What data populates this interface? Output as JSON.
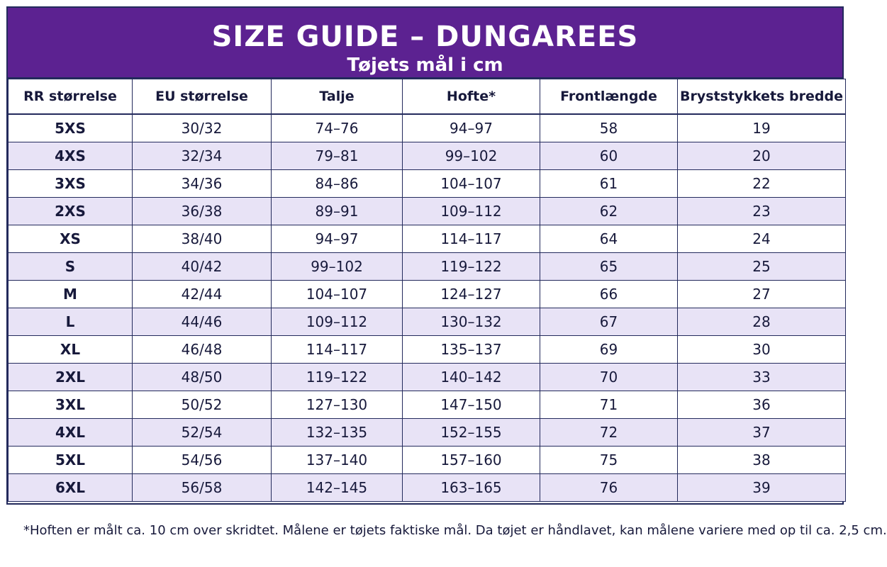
{
  "header": {
    "title": "SIZE GUIDE – DUNGAREES",
    "subtitle": "Tøjets mål i cm"
  },
  "table": {
    "columns": [
      "RR størrelse",
      "EU størrelse",
      "Talje",
      "Hofte*",
      "Frontlængde",
      "Bryststykkets bredde"
    ],
    "rows": [
      [
        "5XS",
        "30/32",
        "74–76",
        "94–97",
        "58",
        "19"
      ],
      [
        "4XS",
        "32/34",
        "79–81",
        "99–102",
        "60",
        "20"
      ],
      [
        "3XS",
        "34/36",
        "84–86",
        "104–107",
        "61",
        "22"
      ],
      [
        "2XS",
        "36/38",
        "89–91",
        "109–112",
        "62",
        "23"
      ],
      [
        "XS",
        "38/40",
        "94–97",
        "114–117",
        "64",
        "24"
      ],
      [
        "S",
        "40/42",
        "99–102",
        "119–122",
        "65",
        "25"
      ],
      [
        "M",
        "42/44",
        "104–107",
        "124–127",
        "66",
        "27"
      ],
      [
        "L",
        "44/46",
        "109–112",
        "130–132",
        "67",
        "28"
      ],
      [
        "XL",
        "46/48",
        "114–117",
        "135–137",
        "69",
        "30"
      ],
      [
        "2XL",
        "48/50",
        "119–122",
        "140–142",
        "70",
        "33"
      ],
      [
        "3XL",
        "50/52",
        "127–130",
        "147–150",
        "71",
        "36"
      ],
      [
        "4XL",
        "52/54",
        "132–135",
        "152–155",
        "72",
        "37"
      ],
      [
        "5XL",
        "54/56",
        "137–140",
        "157–160",
        "75",
        "38"
      ],
      [
        "6XL",
        "56/58",
        "142–145",
        "163–165",
        "76",
        "39"
      ]
    ]
  },
  "footnote": "*Hoften er målt ca. 10 cm over skridtet. Målene er tøjets faktiske mål. Da tøjet er håndlavet, kan målene variere med op til ca. 2,5 cm.",
  "colors": {
    "header_bg": "#5c2291",
    "row_alt_bg": "#e8e3f6",
    "border": "#232a5c",
    "text": "#17193b"
  }
}
